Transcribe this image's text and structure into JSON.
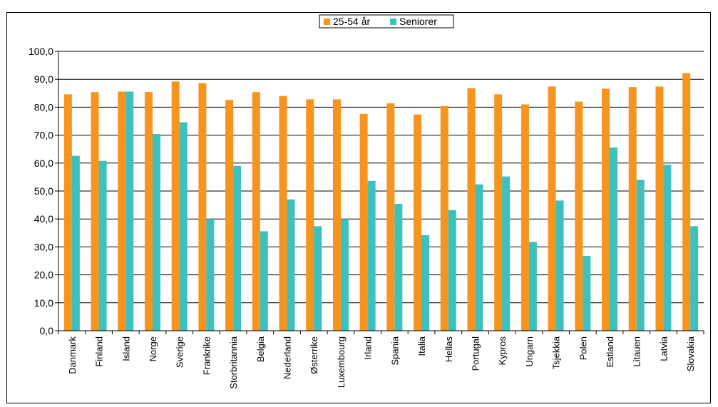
{
  "chart_data": {
    "type": "bar",
    "title": "",
    "xlabel": "",
    "ylabel": "",
    "ylim": [
      0,
      100
    ],
    "yticks": [
      0,
      10,
      20,
      30,
      40,
      50,
      60,
      70,
      80,
      90,
      100
    ],
    "ytick_labels": [
      "0,0",
      "10,0",
      "20,0",
      "30,0",
      "40,0",
      "50,0",
      "60,0",
      "70,0",
      "80,0",
      "90,0",
      "100,0"
    ],
    "grid": true,
    "legend_position": "top-center",
    "categories": [
      "Danmark",
      "Finland",
      "Island",
      "Norge",
      "Sverige",
      "Frankrike",
      "Storbritannia",
      "Belgia",
      "Nederland",
      "Østerrike",
      "Luxembourg",
      "Irland",
      "Spania",
      "Italia",
      "Hellas",
      "Portugal",
      "Kypros",
      "Ungarn",
      "Tsjekkia",
      "Polen",
      "Estland",
      "Litauen",
      "Latvia",
      "Slovakia"
    ],
    "series": [
      {
        "name": "25-54 år",
        "color": "#F7941D",
        "values": [
          84.6,
          85.4,
          85.6,
          85.4,
          89.2,
          88.6,
          82.6,
          85.4,
          84.0,
          82.8,
          82.8,
          77.6,
          81.4,
          77.4,
          80.4,
          86.8,
          84.6,
          81.0,
          87.4,
          82.0,
          86.6,
          87.2,
          87.4,
          92.2
        ]
      },
      {
        "name": "Seniorer",
        "color": "#3EC1BE",
        "values": [
          62.6,
          60.8,
          85.6,
          70.4,
          74.6,
          40.0,
          59.0,
          35.6,
          47.0,
          37.4,
          40.0,
          53.6,
          45.4,
          34.2,
          43.2,
          52.4,
          55.2,
          31.8,
          46.6,
          26.8,
          65.6,
          54.0,
          59.4,
          37.4
        ]
      }
    ]
  }
}
